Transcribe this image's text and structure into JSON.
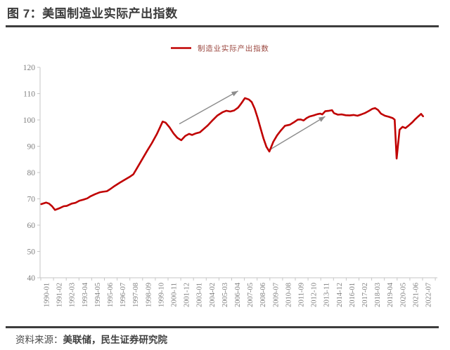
{
  "header": {
    "title": "图 7：美国制造业实际产出指数"
  },
  "footer": {
    "source_label": "资料来源：",
    "source_value": "美联储，民生证券研究院"
  },
  "palette": {
    "series_red": "#C00000",
    "legend_text": "#9C4A42",
    "axis_line": "#C6C6C6",
    "axis_text": "#808080",
    "arrow_gray": "#8C8C8C",
    "title_text": "#3A3A3A",
    "rule_line": "#3D3D3D"
  },
  "chart_data": {
    "type": "line",
    "title": "图 7：美国制造业实际产出指数",
    "legend_position": "top-center",
    "grid": "off",
    "legend": [
      {
        "label": "制造业实际产出指数",
        "color": "#C00000"
      }
    ],
    "y_axis": {
      "min": 40,
      "max": 120,
      "step": 10,
      "tick_labels": [
        40,
        50,
        60,
        70,
        80,
        90,
        100,
        110,
        120
      ]
    },
    "x_axis": {
      "first_month": "1990-01",
      "last_month": "2022-07",
      "label_interval_months": 13,
      "tick_labels": [
        "1990-01",
        "1991-02",
        "1992-03",
        "1993-04",
        "1994-05",
        "1995-06",
        "1996-07",
        "1997-08",
        "1998-09",
        "1999-10",
        "2000-11",
        "2001-12",
        "2003-01",
        "2004-02",
        "2005-03",
        "2006-04",
        "2007-05",
        "2008-06",
        "2009-07",
        "2010-08",
        "2011-09",
        "2012-10",
        "2013-11",
        "2014-12",
        "2016-01",
        "2017-02",
        "2018-03",
        "2019-04",
        "2020-05",
        "2021-06",
        "2022-07"
      ]
    },
    "series": [
      {
        "name": "制造业实际产出指数",
        "color": "#C00000",
        "points": [
          [
            "1990-01",
            68.0
          ],
          [
            "1990-06",
            68.6
          ],
          [
            "1990-09",
            68.2
          ],
          [
            "1990-12",
            67.2
          ],
          [
            "1991-03",
            65.8
          ],
          [
            "1991-08",
            66.5
          ],
          [
            "1991-12",
            67.2
          ],
          [
            "1992-03",
            67.3
          ],
          [
            "1992-08",
            68.2
          ],
          [
            "1992-12",
            68.5
          ],
          [
            "1993-04",
            69.3
          ],
          [
            "1993-08",
            69.7
          ],
          [
            "1993-12",
            70.2
          ],
          [
            "1994-03",
            70.9
          ],
          [
            "1994-08",
            71.8
          ],
          [
            "1995-01",
            72.5
          ],
          [
            "1995-04",
            72.7
          ],
          [
            "1995-08",
            72.9
          ],
          [
            "1995-11",
            73.6
          ],
          [
            "1996-04",
            74.9
          ],
          [
            "1996-09",
            76.1
          ],
          [
            "1997-02",
            77.2
          ],
          [
            "1997-07",
            78.3
          ],
          [
            "1997-11",
            79.3
          ],
          [
            "1998-03",
            81.8
          ],
          [
            "1998-08",
            85.0
          ],
          [
            "1999-01",
            88.2
          ],
          [
            "1999-06",
            91.2
          ],
          [
            "1999-11",
            94.6
          ],
          [
            "2000-02",
            97.0
          ],
          [
            "2000-05",
            99.4
          ],
          [
            "2000-08",
            99.0
          ],
          [
            "2000-12",
            97.2
          ],
          [
            "2001-04",
            94.9
          ],
          [
            "2001-08",
            93.2
          ],
          [
            "2001-12",
            92.3
          ],
          [
            "2002-04",
            93.9
          ],
          [
            "2002-08",
            94.7
          ],
          [
            "2002-11",
            94.3
          ],
          [
            "2003-03",
            94.9
          ],
          [
            "2003-07",
            95.3
          ],
          [
            "2003-11",
            96.6
          ],
          [
            "2004-03",
            97.9
          ],
          [
            "2004-08",
            99.9
          ],
          [
            "2005-01",
            101.7
          ],
          [
            "2005-06",
            102.9
          ],
          [
            "2005-10",
            103.5
          ],
          [
            "2006-02",
            103.2
          ],
          [
            "2006-06",
            103.6
          ],
          [
            "2006-10",
            104.7
          ],
          [
            "2007-01",
            106.1
          ],
          [
            "2007-05",
            108.3
          ],
          [
            "2007-09",
            107.8
          ],
          [
            "2007-12",
            106.8
          ],
          [
            "2008-03",
            104.3
          ],
          [
            "2008-06",
            100.8
          ],
          [
            "2008-09",
            96.8
          ],
          [
            "2008-12",
            92.9
          ],
          [
            "2009-03",
            89.8
          ],
          [
            "2009-06",
            88.0
          ],
          [
            "2009-10",
            91.7
          ],
          [
            "2010-02",
            94.2
          ],
          [
            "2010-06",
            96.1
          ],
          [
            "2010-10",
            97.8
          ],
          [
            "2011-03",
            98.2
          ],
          [
            "2011-07",
            99.1
          ],
          [
            "2011-11",
            100.1
          ],
          [
            "2012-02",
            100.2
          ],
          [
            "2012-05",
            99.8
          ],
          [
            "2012-08",
            100.7
          ],
          [
            "2012-11",
            101.3
          ],
          [
            "2013-03",
            101.7
          ],
          [
            "2013-07",
            102.2
          ],
          [
            "2013-10",
            102.4
          ],
          [
            "2013-12",
            102.1
          ],
          [
            "2014-03",
            103.3
          ],
          [
            "2014-07",
            103.5
          ],
          [
            "2014-10",
            103.7
          ],
          [
            "2014-12",
            102.6
          ],
          [
            "2015-04",
            102.0
          ],
          [
            "2015-08",
            102.1
          ],
          [
            "2015-12",
            101.8
          ],
          [
            "2016-04",
            101.7
          ],
          [
            "2016-08",
            101.9
          ],
          [
            "2016-12",
            101.6
          ],
          [
            "2017-04",
            102.1
          ],
          [
            "2017-08",
            102.7
          ],
          [
            "2017-12",
            103.5
          ],
          [
            "2018-03",
            104.2
          ],
          [
            "2018-06",
            104.5
          ],
          [
            "2018-09",
            103.8
          ],
          [
            "2018-12",
            102.4
          ],
          [
            "2019-04",
            101.6
          ],
          [
            "2019-08",
            101.2
          ],
          [
            "2019-12",
            100.7
          ],
          [
            "2020-02",
            100.1
          ],
          [
            "2020-04",
            85.3
          ],
          [
            "2020-07",
            96.3
          ],
          [
            "2020-10",
            97.4
          ],
          [
            "2021-01",
            96.9
          ],
          [
            "2021-04",
            97.8
          ],
          [
            "2021-08",
            99.1
          ],
          [
            "2021-11",
            100.3
          ],
          [
            "2022-02",
            101.3
          ],
          [
            "2022-05",
            102.3
          ],
          [
            "2022-07",
            101.4
          ]
        ]
      }
    ],
    "annotations": {
      "arrows": [
        {
          "from": [
            "2001-10",
            98.5
          ],
          "to": [
            "2006-10",
            111.0
          ]
        },
        {
          "from": [
            "2009-07",
            88.8
          ],
          "to": [
            "2014-03",
            101.3
          ]
        }
      ]
    }
  }
}
